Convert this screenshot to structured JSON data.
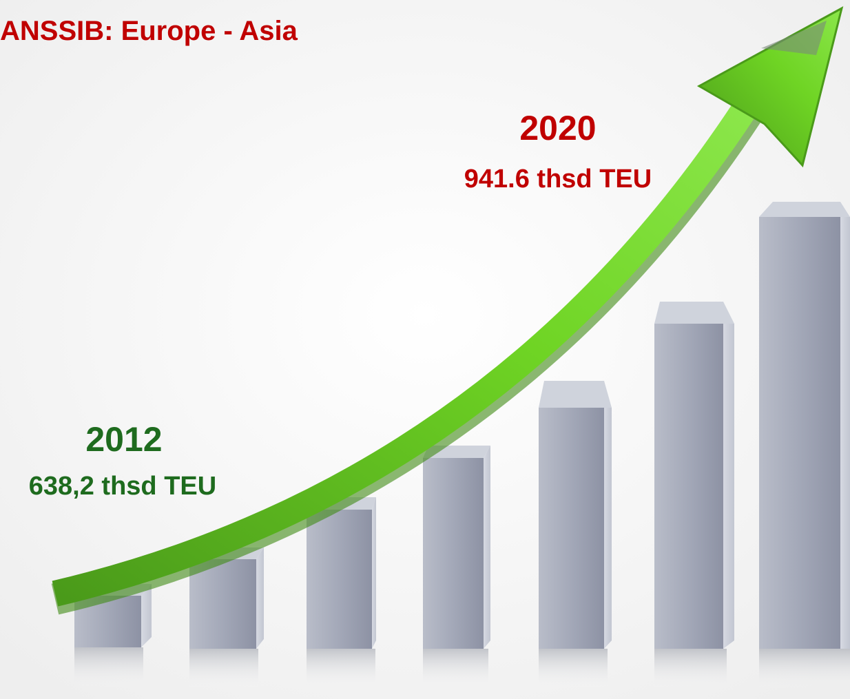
{
  "header": {
    "title": "ANSSIB: Europe - Asia"
  },
  "annotations": [
    {
      "year": "2020",
      "volume": "941.6 thsd TEU"
    },
    {
      "year": "2012",
      "volume": "638,2 thsd TEU"
    }
  ]
}
